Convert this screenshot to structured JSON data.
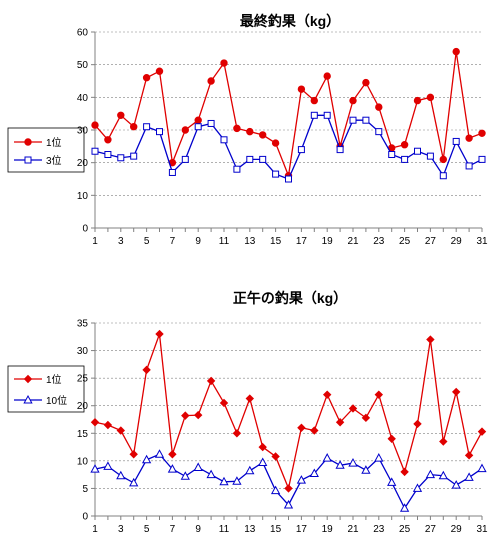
{
  "chart_data": [
    {
      "type": "line",
      "title": "最終釣果（kg）",
      "x": [
        1,
        2,
        3,
        4,
        5,
        6,
        7,
        8,
        9,
        10,
        11,
        12,
        13,
        14,
        15,
        16,
        17,
        18,
        19,
        20,
        21,
        22,
        23,
        24,
        25,
        26,
        27,
        28,
        29,
        30,
        31
      ],
      "xticks": [
        1,
        3,
        5,
        7,
        9,
        11,
        13,
        15,
        17,
        19,
        21,
        23,
        25,
        27,
        29,
        31
      ],
      "ylim": [
        0,
        60
      ],
      "yticks": [
        0,
        10,
        20,
        30,
        40,
        50,
        60
      ],
      "grid": true,
      "legend_position": "left",
      "series": [
        {
          "name": "1位",
          "color": "#e00000",
          "marker": "circle",
          "values": [
            31.5,
            27,
            34.5,
            31,
            46,
            48,
            20,
            30,
            33,
            45,
            50.5,
            30.5,
            29.5,
            28.5,
            26,
            16,
            42.5,
            39,
            46.5,
            25,
            39,
            44.5,
            37,
            24.5,
            25.5,
            39,
            40,
            21,
            54,
            27.5,
            29
          ]
        },
        {
          "name": "3位",
          "color": "#0000cc",
          "marker": "square",
          "values": [
            23.5,
            22.5,
            21.5,
            22,
            31,
            29.5,
            17,
            21,
            31,
            32,
            27,
            18,
            21,
            21,
            16.5,
            15,
            24,
            34.5,
            34.5,
            24,
            33,
            33,
            29.5,
            22.5,
            21,
            23.5,
            22,
            16,
            26.5,
            19,
            21
          ]
        }
      ]
    },
    {
      "type": "line",
      "title": "正午の釣果（kg）",
      "x": [
        1,
        2,
        3,
        4,
        5,
        6,
        7,
        8,
        9,
        10,
        11,
        12,
        13,
        14,
        15,
        16,
        17,
        18,
        19,
        20,
        21,
        22,
        23,
        24,
        25,
        26,
        27,
        28,
        29,
        30,
        31
      ],
      "xticks": [
        1,
        3,
        5,
        7,
        9,
        11,
        13,
        15,
        17,
        19,
        21,
        23,
        25,
        27,
        29,
        31
      ],
      "ylim": [
        0,
        35
      ],
      "yticks": [
        0,
        5,
        10,
        15,
        20,
        25,
        30,
        35
      ],
      "grid": true,
      "legend_position": "left",
      "series": [
        {
          "name": "1位",
          "color": "#e00000",
          "marker": "diamond",
          "values": [
            17,
            16.5,
            15.5,
            11.2,
            26.5,
            33,
            11.2,
            18.2,
            18.3,
            24.5,
            20.5,
            15,
            21.3,
            12.5,
            10.8,
            5,
            16,
            15.5,
            22,
            17,
            19.5,
            17.8,
            22,
            14,
            8,
            16.7,
            32,
            13.5,
            22.5,
            11,
            15.3
          ]
        },
        {
          "name": "10位",
          "color": "#0000cc",
          "marker": "triangle",
          "values": [
            8.5,
            9,
            7.3,
            6,
            10.2,
            11.2,
            8.5,
            7.2,
            8.8,
            7.5,
            6.2,
            6.3,
            8.2,
            9.7,
            4.6,
            2,
            6.5,
            7.7,
            10.5,
            9.2,
            9.6,
            8.3,
            10.5,
            6.1,
            1.4,
            5,
            7.5,
            7.3,
            5.6,
            7,
            8.6
          ]
        }
      ]
    }
  ]
}
